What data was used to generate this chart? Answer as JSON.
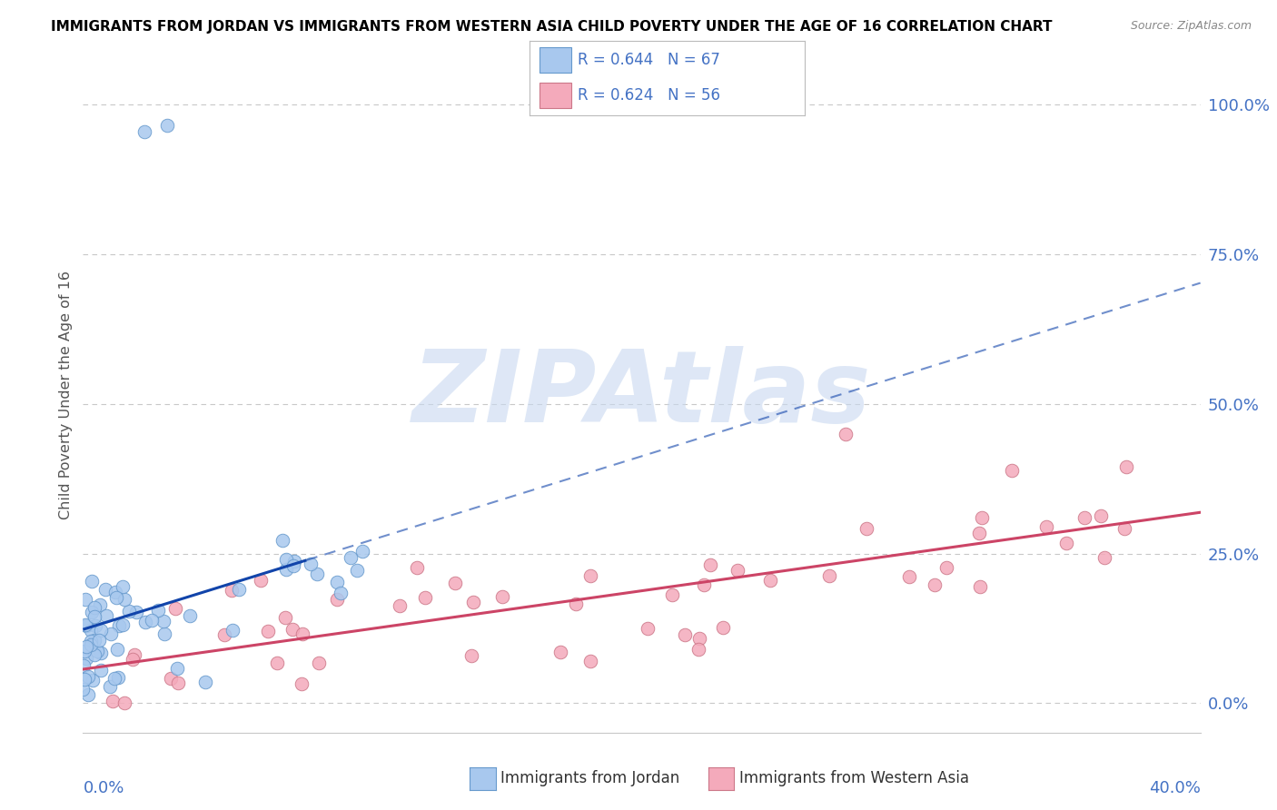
{
  "title": "IMMIGRANTS FROM JORDAN VS IMMIGRANTS FROM WESTERN ASIA CHILD POVERTY UNDER THE AGE OF 16 CORRELATION CHART",
  "source": "Source: ZipAtlas.com",
  "ylabel": "Child Poverty Under the Age of 16",
  "xlim": [
    0.0,
    0.4
  ],
  "ylim": [
    -0.05,
    1.08
  ],
  "yticks": [
    0.0,
    0.25,
    0.5,
    0.75,
    1.0
  ],
  "ytick_labels": [
    "0.0%",
    "25.0%",
    "50.0%",
    "75.0%",
    "100.0%"
  ],
  "xtick_label_left": "0.0%",
  "xtick_label_right": "40.0%",
  "jordan_color": "#A8C8EE",
  "jordan_edge": "#6699CC",
  "western_color": "#F4AABB",
  "western_edge": "#CC7788",
  "jordan_R": 0.644,
  "jordan_N": 67,
  "western_R": 0.624,
  "western_N": 56,
  "jordan_line_color": "#1144AA",
  "western_line_color": "#CC4466",
  "watermark": "ZIPAtlas",
  "watermark_color": "#C8D8F0",
  "legend_label_jordan": "Immigrants from Jordan",
  "legend_label_western": "Immigrants from Western Asia",
  "background_color": "#FFFFFF",
  "grid_color": "#C8C8C8",
  "title_color": "#000000",
  "label_color": "#4472C4",
  "axis_label_color": "#555555",
  "source_color": "#888888"
}
